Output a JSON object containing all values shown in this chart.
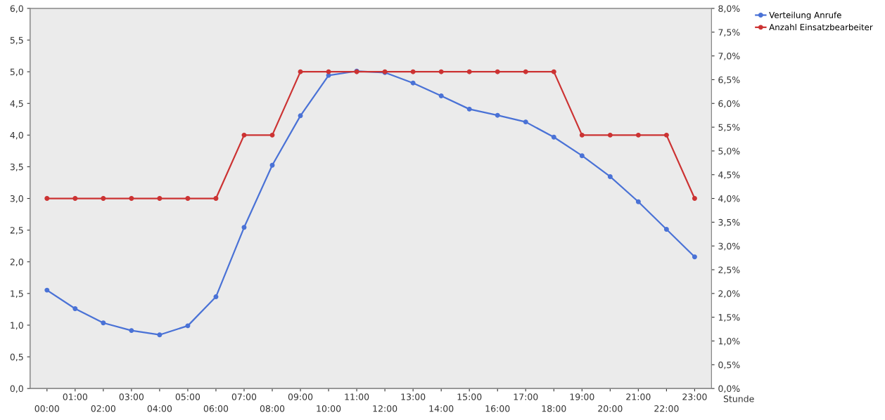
{
  "chart_data": {
    "type": "line",
    "xlabel": "Stunde",
    "categories": [
      "00:00",
      "01:00",
      "02:00",
      "03:00",
      "04:00",
      "05:00",
      "06:00",
      "07:00",
      "08:00",
      "09:00",
      "10:00",
      "11:00",
      "12:00",
      "13:00",
      "14:00",
      "15:00",
      "16:00",
      "17:00",
      "18:00",
      "19:00",
      "20:00",
      "21:00",
      "22:00",
      "23:00"
    ],
    "series": [
      {
        "name": "Verteilung Anrufe",
        "color": "#4a72d6",
        "axis": "y2",
        "values": [
          2.07,
          1.68,
          1.38,
          1.22,
          1.13,
          1.32,
          1.93,
          3.39,
          4.7,
          5.74,
          6.59,
          6.68,
          6.65,
          6.43,
          6.16,
          5.88,
          5.75,
          5.61,
          5.29,
          4.9,
          4.46,
          3.93,
          3.35,
          2.77
        ]
      },
      {
        "name": "Anzahl Einsatzbearbeiter",
        "color": "#cc3333",
        "values": [
          3,
          3,
          3,
          3,
          3,
          3,
          3,
          4,
          4,
          5,
          5,
          5,
          5,
          5,
          5,
          5,
          5,
          5,
          5,
          4,
          4,
          4,
          4,
          3
        ]
      }
    ],
    "ylim": [
      0,
      6
    ],
    "yticks": [
      {
        "value": 0,
        "label": "0,0"
      },
      {
        "value": 0.5,
        "label": "0,5"
      },
      {
        "value": 1,
        "label": "1,0"
      },
      {
        "value": 1.5,
        "label": "1,5"
      },
      {
        "value": 2,
        "label": "2,0"
      },
      {
        "value": 2.5,
        "label": "2,5"
      },
      {
        "value": 3,
        "label": "3,0"
      },
      {
        "value": 3.5,
        "label": "3,5"
      },
      {
        "value": 4,
        "label": "4,0"
      },
      {
        "value": 4.5,
        "label": "4,5"
      },
      {
        "value": 5,
        "label": "5,0"
      },
      {
        "value": 5.5,
        "label": "5,5"
      },
      {
        "value": 6,
        "label": "6,0"
      }
    ],
    "y2lim": [
      0,
      8
    ],
    "y2ticks": [
      {
        "value": 0,
        "label": "0,0%"
      },
      {
        "value": 0.5,
        "label": "0,5%"
      },
      {
        "value": 1,
        "label": "1,0%"
      },
      {
        "value": 1.5,
        "label": "1,5%"
      },
      {
        "value": 2,
        "label": "2,0%"
      },
      {
        "value": 2.5,
        "label": "2,5%"
      },
      {
        "value": 3,
        "label": "3,0%"
      },
      {
        "value": 3.5,
        "label": "3,5%"
      },
      {
        "value": 4,
        "label": "4,0%"
      },
      {
        "value": 4.5,
        "label": "4,5%"
      },
      {
        "value": 5,
        "label": "5,0%"
      },
      {
        "value": 5.5,
        "label": "5,5%"
      },
      {
        "value": 6,
        "label": "6,0%"
      },
      {
        "value": 6.5,
        "label": "6,5%"
      },
      {
        "value": 7,
        "label": "7,0%"
      },
      {
        "value": 7.5,
        "label": "7,5%"
      },
      {
        "value": 8,
        "label": "8,0%"
      }
    ],
    "grid": false,
    "legend": "top right",
    "marker": "circle",
    "line_style": "solid"
  }
}
